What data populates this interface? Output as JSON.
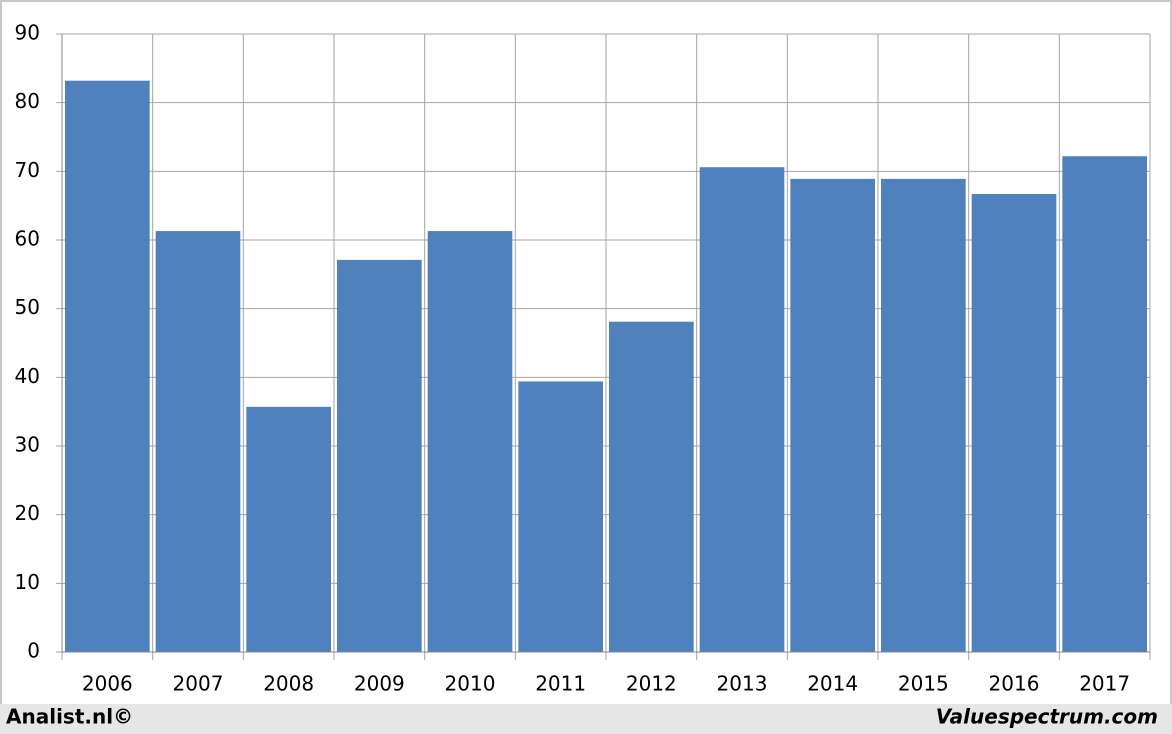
{
  "chart_data": {
    "type": "bar",
    "categories": [
      "2006",
      "2007",
      "2008",
      "2009",
      "2010",
      "2011",
      "2012",
      "2013",
      "2014",
      "2015",
      "2016",
      "2017"
    ],
    "values": [
      83.2,
      61.3,
      35.7,
      57.1,
      61.3,
      39.4,
      48.1,
      70.6,
      68.9,
      68.9,
      66.7,
      72.2
    ],
    "color": "#4f81bd",
    "ylim": [
      0,
      90
    ],
    "yticks": [
      0,
      10,
      20,
      30,
      40,
      50,
      60,
      70,
      80,
      90
    ],
    "grid": true,
    "footer_left": "Analist.nl©",
    "footer_right": "Valuespectrum.com"
  }
}
